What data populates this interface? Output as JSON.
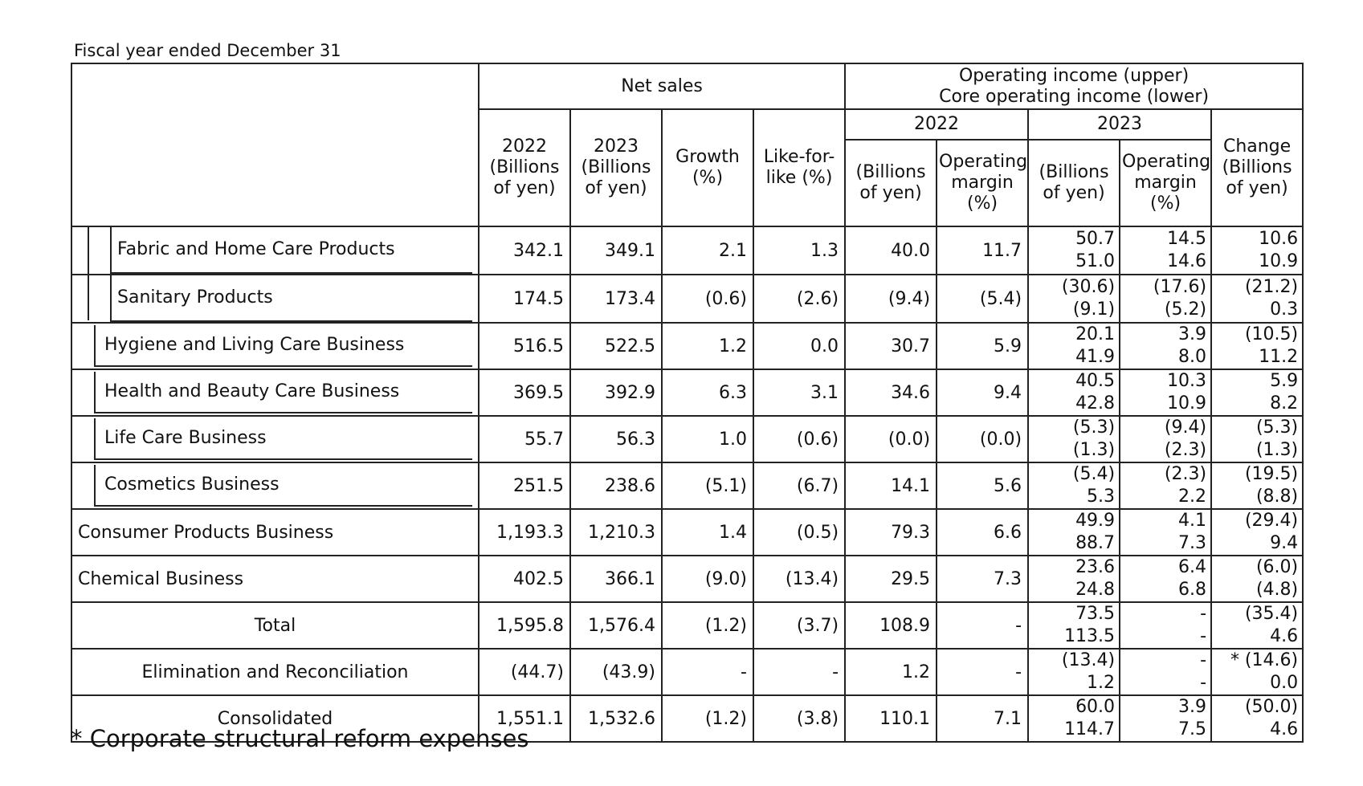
{
  "caption": "Fiscal year ended December 31",
  "headers": {
    "net_sales": "Net sales",
    "op_income_upper": "Operating income (upper)",
    "op_income_lower": "Core operating income (lower)",
    "year_2022": "2022",
    "year_2023": "2023",
    "col_2022_sales": "2022 (Billions of yen)",
    "col_2023_sales": "2023 (Billions of yen)",
    "col_growth": "Growth (%)",
    "col_lfl": "Like-for-like (%)",
    "col_oi_2022": "(Billions of yen)",
    "col_om_2022": "Operating margin (%)",
    "col_oi_2023": "(Billions of yen)",
    "col_om_2023": "Operating margin (%)",
    "col_change": "Change (Billions of yen)"
  },
  "rows": [
    {
      "name": "Fabric and Home Care Products",
      "sales_2022": "342.1",
      "sales_2023": "349.1",
      "growth": "2.1",
      "lfl": "1.3",
      "oi_2022": "40.0",
      "om_2022": "11.7",
      "oi_2023_upper": "50.7",
      "oi_2023_lower": "51.0",
      "om_2023_upper": "14.5",
      "om_2023_lower": "14.6",
      "change_upper": "10.6",
      "change_lower": "10.9"
    },
    {
      "name": "Sanitary Products",
      "sales_2022": "174.5",
      "sales_2023": "173.4",
      "growth": "(0.6)",
      "lfl": "(2.6)",
      "oi_2022": "(9.4)",
      "om_2022": "(5.4)",
      "oi_2023_upper": "(30.6)",
      "oi_2023_lower": "(9.1)",
      "om_2023_upper": "(17.6)",
      "om_2023_lower": "(5.2)",
      "change_upper": "(21.2)",
      "change_lower": "0.3"
    },
    {
      "name": "Hygiene and Living Care Business",
      "sales_2022": "516.5",
      "sales_2023": "522.5",
      "growth": "1.2",
      "lfl": "0.0",
      "oi_2022": "30.7",
      "om_2022": "5.9",
      "oi_2023_upper": "20.1",
      "oi_2023_lower": "41.9",
      "om_2023_upper": "3.9",
      "om_2023_lower": "8.0",
      "change_upper": "(10.5)",
      "change_lower": "11.2"
    },
    {
      "name": "Health and Beauty Care Business",
      "sales_2022": "369.5",
      "sales_2023": "392.9",
      "growth": "6.3",
      "lfl": "3.1",
      "oi_2022": "34.6",
      "om_2022": "9.4",
      "oi_2023_upper": "40.5",
      "oi_2023_lower": "42.8",
      "om_2023_upper": "10.3",
      "om_2023_lower": "10.9",
      "change_upper": "5.9",
      "change_lower": "8.2"
    },
    {
      "name": "Life Care Business",
      "sales_2022": "55.7",
      "sales_2023": "56.3",
      "growth": "1.0",
      "lfl": "(0.6)",
      "oi_2022": "(0.0)",
      "om_2022": "(0.0)",
      "oi_2023_upper": "(5.3)",
      "oi_2023_lower": "(1.3)",
      "om_2023_upper": "(9.4)",
      "om_2023_lower": "(2.3)",
      "change_upper": "(5.3)",
      "change_lower": "(1.3)"
    },
    {
      "name": "Cosmetics Business",
      "sales_2022": "251.5",
      "sales_2023": "238.6",
      "growth": "(5.1)",
      "lfl": "(6.7)",
      "oi_2022": "14.1",
      "om_2022": "5.6",
      "oi_2023_upper": "(5.4)",
      "oi_2023_lower": "5.3",
      "om_2023_upper": "(2.3)",
      "om_2023_lower": "2.2",
      "change_upper": "(19.5)",
      "change_lower": "(8.8)"
    },
    {
      "name": "Consumer Products Business",
      "sales_2022": "1,193.3",
      "sales_2023": "1,210.3",
      "growth": "1.4",
      "lfl": "(0.5)",
      "oi_2022": "79.3",
      "om_2022": "6.6",
      "oi_2023_upper": "49.9",
      "oi_2023_lower": "88.7",
      "om_2023_upper": "4.1",
      "om_2023_lower": "7.3",
      "change_upper": "(29.4)",
      "change_lower": "9.4"
    },
    {
      "name": "Chemical Business",
      "sales_2022": "402.5",
      "sales_2023": "366.1",
      "growth": "(9.0)",
      "lfl": "(13.4)",
      "oi_2022": "29.5",
      "om_2022": "7.3",
      "oi_2023_upper": "23.6",
      "oi_2023_lower": "24.8",
      "om_2023_upper": "6.4",
      "om_2023_lower": "6.8",
      "change_upper": "(6.0)",
      "change_lower": "(4.8)"
    },
    {
      "name": "Total",
      "sales_2022": "1,595.8",
      "sales_2023": "1,576.4",
      "growth": "(1.2)",
      "lfl": "(3.7)",
      "oi_2022": "108.9",
      "om_2022": "-",
      "oi_2023_upper": "73.5",
      "oi_2023_lower": "113.5",
      "om_2023_upper": "-",
      "om_2023_lower": "-",
      "change_upper": "(35.4)",
      "change_lower": "4.6"
    },
    {
      "name": "Elimination and Reconciliation",
      "sales_2022": "(44.7)",
      "sales_2023": "(43.9)",
      "growth": "-",
      "lfl": "-",
      "oi_2022": "1.2",
      "om_2022": "-",
      "oi_2023_upper": "(13.4)",
      "oi_2023_lower": "1.2",
      "om_2023_upper": "-",
      "om_2023_lower": "-",
      "change_upper": "* (14.6)",
      "change_lower": "0.0"
    },
    {
      "name": "Consolidated",
      "sales_2022": "1,551.1",
      "sales_2023": "1,532.6",
      "growth": "(1.2)",
      "lfl": "(3.8)",
      "oi_2022": "110.1",
      "om_2022": "7.1",
      "oi_2023_upper": "60.0",
      "oi_2023_lower": "114.7",
      "om_2023_upper": "3.9",
      "om_2023_lower": "7.5",
      "change_upper": "(50.0)",
      "change_lower": "4.6"
    }
  ],
  "footnote": "* Corporate structural reform expenses"
}
